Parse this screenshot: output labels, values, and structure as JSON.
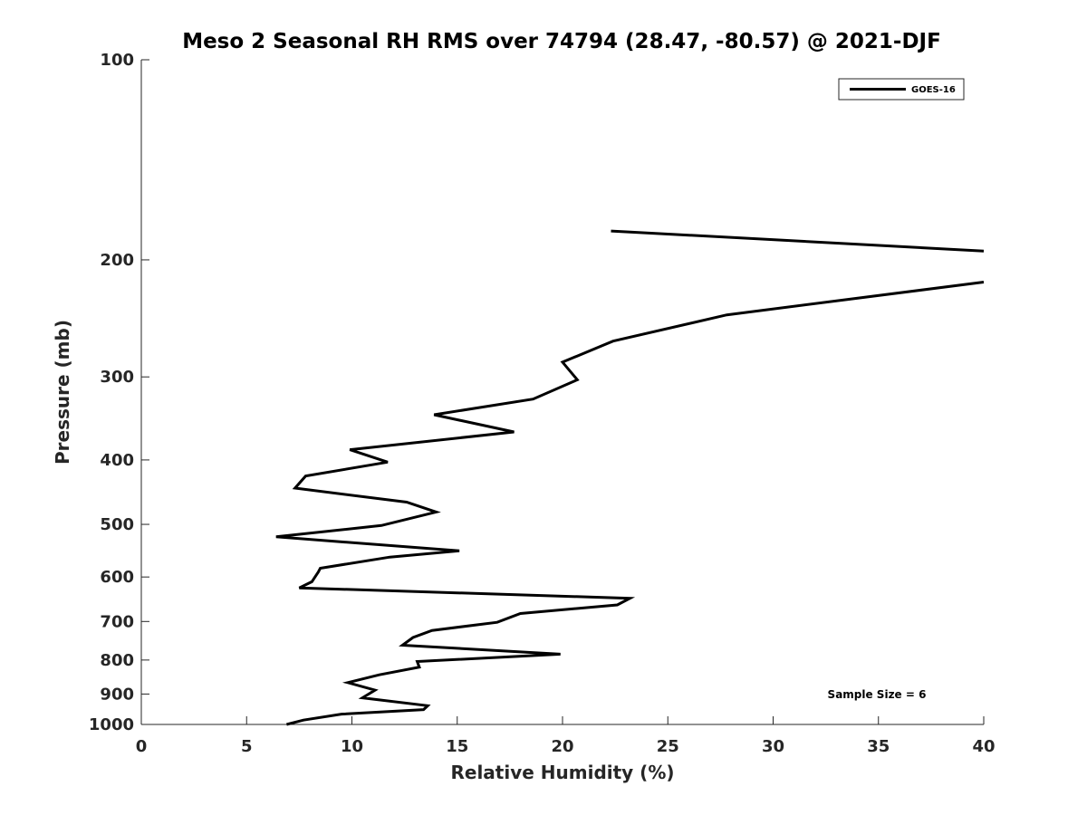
{
  "chart_data": {
    "type": "line",
    "title": "Meso 2 Seasonal RH RMS over 74794 (28.47, -80.57) @ 2021-DJF",
    "xlabel": "Relative Humidity (%)",
    "ylabel": "Pressure (mb)",
    "xlim": [
      0,
      40
    ],
    "ylim": [
      100,
      1000
    ],
    "yscale": "log",
    "y_reversed": true,
    "grid": false,
    "legend_position": "top-right",
    "xticks": [
      "0",
      "5",
      "10",
      "15",
      "20",
      "25",
      "30",
      "35",
      "40"
    ],
    "yticks": [
      "100",
      "200",
      "300",
      "400",
      "500",
      "600",
      "700",
      "800",
      "900",
      "1000"
    ],
    "series": [
      {
        "name": "GOES-16",
        "color": "#000000",
        "points": [
          [
            6.9,
            1000
          ],
          [
            7.7,
            985
          ],
          [
            9.5,
            965
          ],
          [
            13.4,
            950
          ],
          [
            13.6,
            937
          ],
          [
            10.5,
            912
          ],
          [
            11.1,
            888
          ],
          [
            9.8,
            865
          ],
          [
            11.3,
            842
          ],
          [
            13.2,
            820
          ],
          [
            13.1,
            804
          ],
          [
            19.9,
            784
          ],
          [
            12.4,
            760
          ],
          [
            12.9,
            740
          ],
          [
            13.8,
            722
          ],
          [
            16.9,
            702
          ],
          [
            18.0,
            681
          ],
          [
            22.6,
            661
          ],
          [
            23.2,
            646
          ],
          [
            7.5,
            623
          ],
          [
            8.1,
            610
          ],
          [
            8.4,
            590
          ],
          [
            8.5,
            582
          ],
          [
            11.8,
            560
          ],
          [
            15.1,
            548
          ],
          [
            6.4,
            522
          ],
          [
            11.4,
            502
          ],
          [
            14.0,
            479
          ],
          [
            12.6,
            463
          ],
          [
            7.3,
            441
          ],
          [
            7.8,
            423
          ],
          [
            11.7,
            403
          ],
          [
            9.9,
            386
          ],
          [
            17.7,
            363
          ],
          [
            13.9,
            342
          ],
          [
            18.6,
            324
          ],
          [
            20.7,
            303
          ],
          [
            20.0,
            285
          ],
          [
            22.4,
            265
          ],
          [
            27.8,
            242
          ],
          [
            40.0,
            216
          ]
        ]
      },
      {
        "name": "GOES-16",
        "color": "#000000",
        "points": [
          [
            22.3,
            181
          ],
          [
            40.0,
            194
          ]
        ]
      }
    ],
    "annotation": "Sample Size = 6"
  }
}
